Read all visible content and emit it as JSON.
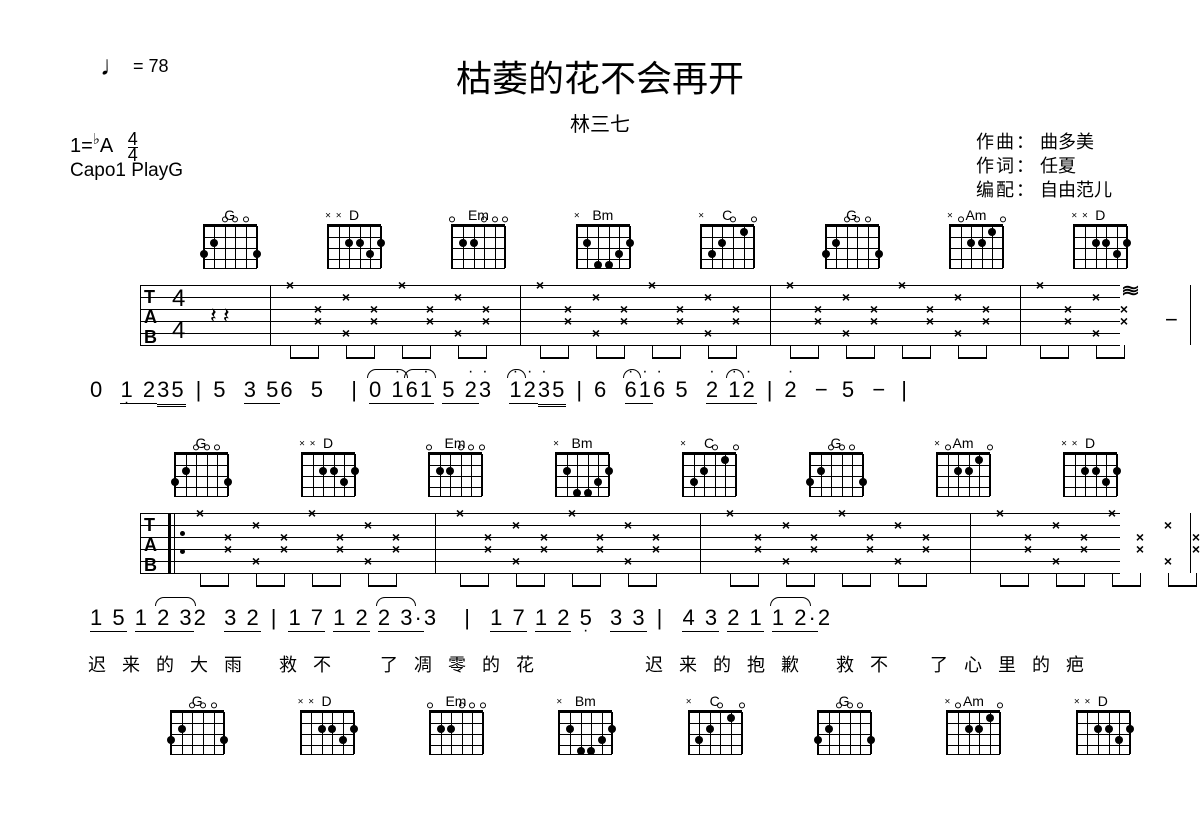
{
  "title": "枯萎的花不会再开",
  "artist": "林三七",
  "tempo_value": "78",
  "key_prefix": "1=",
  "key_accidental": "♭",
  "key_letter": "A",
  "time_sig_top": "4",
  "time_sig_bottom": "4",
  "capo_text": "Capo1 PlayG",
  "credits": {
    "composer_label": "作曲：",
    "composer_name": "曲多美",
    "lyricist_label": "作词：",
    "lyricist_name": "任夏",
    "arranger_label": "编配：",
    "arranger_name": "自由范儿"
  },
  "chord_names": [
    "G",
    "D",
    "Em",
    "Bm",
    "C",
    "G",
    "Am",
    "D"
  ],
  "tab_label": "TAB",
  "tab_sig_top": "4",
  "tab_sig_bottom": "4",
  "jianpu_system1": "0 1235 | 5 356 5 | 0161523 1235 | 6 6165 212 | 2 − 5 − |",
  "jianpu_system2": "15 1232 32 | 17 12 23·3 | 17 125 33 | 4321 12·2",
  "lyrics_system2_a": "迟来的大雨 救不",
  "lyrics_system2_b": "了凋零的花",
  "lyrics_system2_c": "迟来的抱歉 救不",
  "lyrics_system2_d": "了心里的疤",
  "colors": {
    "background": "#ffffff",
    "foreground": "#000000"
  }
}
